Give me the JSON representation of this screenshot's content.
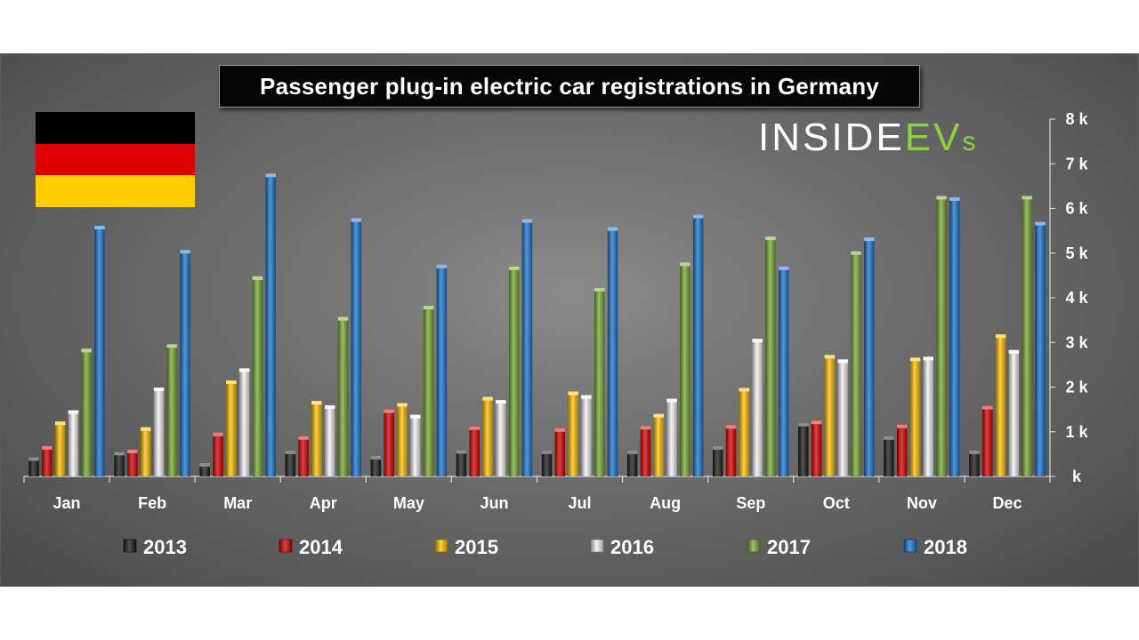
{
  "chart_data": {
    "type": "bar",
    "title": "Passenger plug-in electric car registrations in Germany",
    "categories": [
      "Jan",
      "Feb",
      "Mar",
      "Apr",
      "May",
      "Jun",
      "Jul",
      "Aug",
      "Sep",
      "Oct",
      "Nov",
      "Dec"
    ],
    "series": [
      {
        "name": "2013",
        "color": "#1a1a1a",
        "values": [
          430,
          550,
          300,
          580,
          460,
          590,
          580,
          580,
          680,
          1200,
          900,
          580
        ]
      },
      {
        "name": "2014",
        "color": "#d40000",
        "values": [
          680,
          600,
          980,
          900,
          1500,
          1120,
          1080,
          1130,
          1150,
          1250,
          1160,
          1580
        ]
      },
      {
        "name": "2015",
        "color": "#ffc000",
        "values": [
          1230,
          1100,
          2150,
          1690,
          1640,
          1780,
          1900,
          1400,
          1980,
          2720,
          2660,
          3180
        ]
      },
      {
        "name": "2016",
        "color": "#f2f2f2",
        "values": [
          1480,
          1990,
          2420,
          1590,
          1380,
          1710,
          1820,
          1740,
          3080,
          2620,
          2680,
          2830
        ]
      },
      {
        "name": "2017",
        "color": "#77a832",
        "values": [
          2860,
          2960,
          4480,
          3570,
          3820,
          4700,
          4220,
          4790,
          5370,
          5040,
          6280,
          6280
        ]
      },
      {
        "name": "2018",
        "color": "#1a74d0",
        "values": [
          5610,
          5070,
          6780,
          5780,
          4740,
          5760,
          5580,
          5860,
          4700,
          5350,
          6250,
          5700
        ]
      }
    ],
    "yticks": [
      "k",
      "1 k",
      "2 k",
      "3 k",
      "4 k",
      "5 k",
      "6 k",
      "7 k",
      "8 k"
    ],
    "ylim": [
      0,
      8000
    ],
    "ylabel": "",
    "xlabel": "",
    "legend_position": "bottom",
    "grid": false
  },
  "flag": {
    "colors": [
      "#000000",
      "#dd0000",
      "#ffce00"
    ]
  },
  "logo": {
    "main": "INSIDE",
    "accent": "EV",
    "suffix": "s"
  }
}
